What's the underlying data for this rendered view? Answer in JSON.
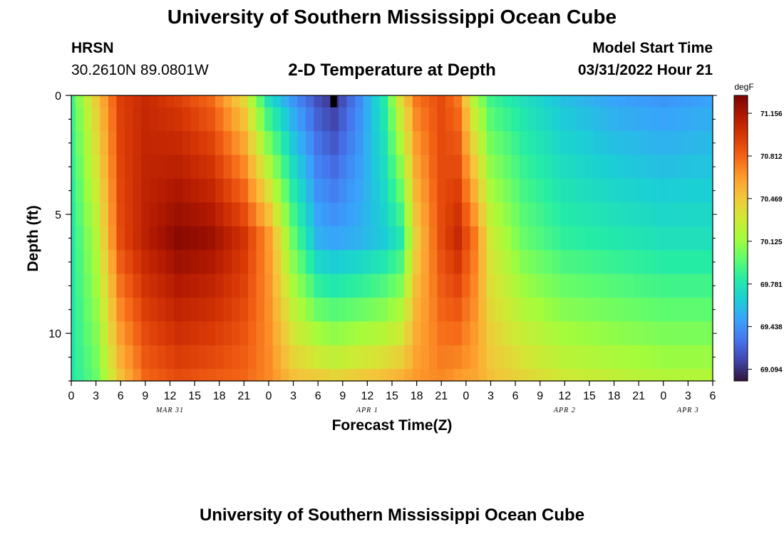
{
  "page": {
    "title": "University of Southern Mississippi Ocean Cube",
    "station_name": "HRSN",
    "coordinates": "30.2610N  89.0801W",
    "subtitle": "2-D Temperature at Depth",
    "model_start_label": "Model Start Time",
    "model_start_value": "03/31/2022 Hour 21",
    "footer_title": "University of Southern Mississippi Ocean Cube"
  },
  "chart_data": {
    "type": "heatmap",
    "title": "2-D Temperature at Depth",
    "xlabel": "Forecast Time(Z)",
    "ylabel": "Depth (ft)",
    "colorbar_unit": "degF",
    "colorbar_ticks": [
      "71.156",
      "70.812",
      "70.469",
      "70.125",
      "69.781",
      "69.438",
      "69.094"
    ],
    "vmin": 69.0,
    "vmax": 71.3,
    "x_range_hours": [
      0,
      78
    ],
    "y_range_ft": [
      0,
      12
    ],
    "x_tick_labels": [
      "0",
      "3",
      "6",
      "9",
      "12",
      "15",
      "18",
      "21",
      "0",
      "3",
      "6",
      "9",
      "12",
      "15",
      "18",
      "21",
      "0",
      "3",
      "6",
      "9",
      "12",
      "15",
      "18",
      "21",
      "0",
      "3",
      "6"
    ],
    "y_tick_labels": [
      "0",
      "5",
      "10"
    ],
    "date_labels": [
      {
        "label": "MAR 31",
        "hour": 12
      },
      {
        "label": "APR 1",
        "hour": 36
      },
      {
        "label": "APR 2",
        "hour": 60
      },
      {
        "label": "APR 3",
        "hour": 75
      }
    ],
    "depth_levels_ft": [
      0,
      1,
      2,
      3,
      4,
      5,
      6,
      7,
      8,
      9,
      10,
      11,
      12
    ],
    "hours": [
      0,
      1,
      2,
      3,
      4,
      5,
      6,
      7,
      8,
      9,
      10,
      11,
      12,
      13,
      14,
      15,
      16,
      17,
      18,
      19,
      20,
      21,
      22,
      23,
      24,
      25,
      26,
      27,
      28,
      29,
      30,
      31,
      32,
      33,
      34,
      35,
      36,
      37,
      38,
      39,
      40,
      41,
      42,
      43,
      44,
      45,
      46,
      47,
      48,
      49,
      50,
      51,
      52,
      53,
      54,
      55,
      56,
      57,
      58,
      59,
      60,
      61,
      62,
      63,
      64,
      65,
      66,
      67,
      68,
      69,
      70,
      71,
      72,
      73,
      74,
      75,
      76,
      77,
      78
    ],
    "temperature_keyframes": [
      {
        "hour": 0,
        "surface": 69.9,
        "mid": 69.8,
        "bottom": 69.8
      },
      {
        "hour": 3,
        "surface": 70.45,
        "mid": 70.2,
        "bottom": 70.0
      },
      {
        "hour": 6,
        "surface": 70.95,
        "mid": 70.9,
        "bottom": 70.5
      },
      {
        "hour": 9,
        "surface": 71.05,
        "mid": 71.1,
        "bottom": 70.8
      },
      {
        "hour": 13,
        "surface": 70.95,
        "mid": 71.25,
        "bottom": 70.9
      },
      {
        "hour": 17,
        "surface": 70.8,
        "mid": 71.2,
        "bottom": 70.85
      },
      {
        "hour": 21,
        "surface": 70.4,
        "mid": 71.0,
        "bottom": 70.8
      },
      {
        "hour": 24,
        "surface": 69.75,
        "mid": 70.65,
        "bottom": 70.7
      },
      {
        "hour": 27,
        "surface": 69.45,
        "mid": 70.0,
        "bottom": 70.5
      },
      {
        "hour": 30,
        "surface": 69.2,
        "mid": 69.55,
        "bottom": 70.45
      },
      {
        "hour": 32,
        "surface": 69.1,
        "mid": 69.5,
        "bottom": 70.4
      },
      {
        "hour": 35,
        "surface": 69.4,
        "mid": 69.55,
        "bottom": 70.45
      },
      {
        "hour": 38,
        "surface": 69.8,
        "mid": 69.65,
        "bottom": 70.5
      },
      {
        "hour": 40,
        "surface": 70.35,
        "mid": 69.8,
        "bottom": 70.55
      },
      {
        "hour": 42,
        "surface": 70.75,
        "mid": 70.45,
        "bottom": 70.65
      },
      {
        "hour": 45,
        "surface": 70.9,
        "mid": 70.9,
        "bottom": 70.7
      },
      {
        "hour": 47,
        "surface": 70.75,
        "mid": 71.05,
        "bottom": 70.65
      },
      {
        "hour": 49,
        "surface": 70.2,
        "mid": 70.75,
        "bottom": 70.6
      },
      {
        "hour": 51,
        "surface": 69.9,
        "mid": 70.3,
        "bottom": 70.5
      },
      {
        "hour": 55,
        "surface": 69.75,
        "mid": 70.0,
        "bottom": 70.4
      },
      {
        "hour": 60,
        "surface": 69.6,
        "mid": 69.85,
        "bottom": 70.3
      },
      {
        "hour": 66,
        "surface": 69.5,
        "mid": 69.8,
        "bottom": 70.25
      },
      {
        "hour": 72,
        "surface": 69.45,
        "mid": 69.75,
        "bottom": 70.2
      },
      {
        "hour": 78,
        "surface": 69.5,
        "mid": 69.75,
        "bottom": 70.2
      }
    ]
  },
  "colors": {
    "colormap": [
      "#30123b",
      "#4145ab",
      "#4675ed",
      "#39a2fc",
      "#1bcfd4",
      "#24eca6",
      "#61fc6c",
      "#a4fc3b",
      "#d1e834",
      "#f3c63a",
      "#fe9b2d",
      "#f36315",
      "#d93806",
      "#b11901",
      "#7a0403"
    ],
    "axis": "#000000",
    "missing": "#000000"
  }
}
